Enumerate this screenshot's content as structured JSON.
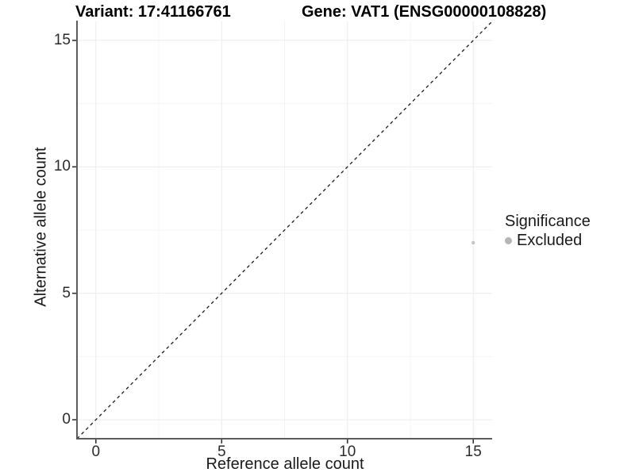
{
  "chart_data": {
    "type": "scatter",
    "title_left": "Variant: 17:41166761",
    "title_right": "Gene: VAT1 (ENSG00000108828)",
    "xlabel": "Reference allele count",
    "ylabel": "Alternative allele count",
    "xlim": [
      -0.75,
      15.75
    ],
    "ylim": [
      -0.75,
      15.75
    ],
    "x_ticks": [
      0,
      5,
      10,
      15
    ],
    "y_ticks": [
      0,
      5,
      10,
      15
    ],
    "x_minor_ticks": [
      2.5,
      7.5,
      12.5
    ],
    "y_minor_ticks": [
      2.5,
      7.5,
      12.5
    ],
    "grid": true,
    "legend_position": "right",
    "reference_line": {
      "kind": "identity",
      "style": "dashed",
      "color": "#1a1a1a"
    },
    "series": [
      {
        "name": "Excluded",
        "color": "#c3c3c3",
        "point_radius": 2.2,
        "points": [
          {
            "x": 15,
            "y": 7
          }
        ]
      }
    ],
    "legend": {
      "title": "Significance",
      "entries": [
        {
          "label": "Excluded",
          "color": "#b5b5b5"
        }
      ]
    },
    "colors": {
      "grid_major": "#ececec",
      "grid_minor": "#f4f4f4",
      "axis_line": "#5c5c5c",
      "tick_mark": "#333333",
      "background": "#ffffff"
    }
  }
}
